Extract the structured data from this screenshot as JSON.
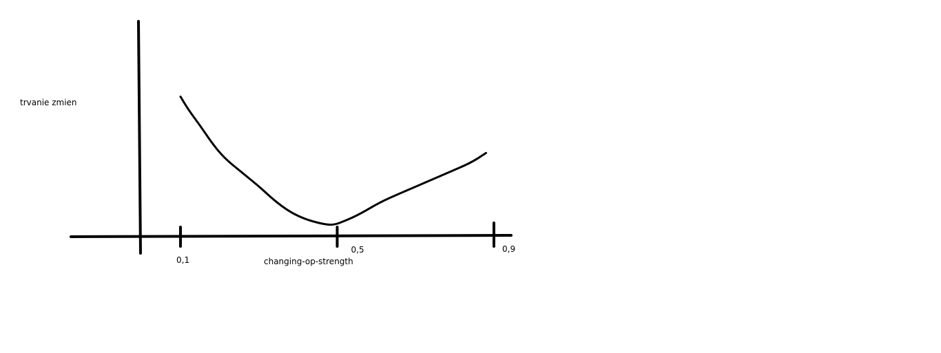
{
  "chart_data": {
    "type": "line",
    "title": "",
    "xlabel": "changing-op-strength",
    "ylabel": "trvanie zmien",
    "xticks": [
      {
        "value": 0.1,
        "label": "0,1"
      },
      {
        "value": 0.5,
        "label": "0,5"
      },
      {
        "value": 0.9,
        "label": "0,9"
      }
    ],
    "grid": false,
    "legend": "none",
    "series": [
      {
        "x": [
          0.1,
          0.12,
          0.15,
          0.18,
          0.21,
          0.25,
          0.3,
          0.34,
          0.38,
          0.42,
          0.46,
          0.49,
          0.52,
          0.56,
          0.61,
          0.66,
          0.72,
          0.78,
          0.84,
          0.88
        ],
        "y": [
          0.96,
          0.87,
          0.76,
          0.64,
          0.54,
          0.45,
          0.34,
          0.24,
          0.16,
          0.11,
          0.08,
          0.07,
          0.1,
          0.15,
          0.23,
          0.29,
          0.36,
          0.43,
          0.5,
          0.57
        ]
      }
    ],
    "colors": {
      "line": "#000000",
      "axis": "#000000",
      "background": "#ffffff"
    }
  }
}
